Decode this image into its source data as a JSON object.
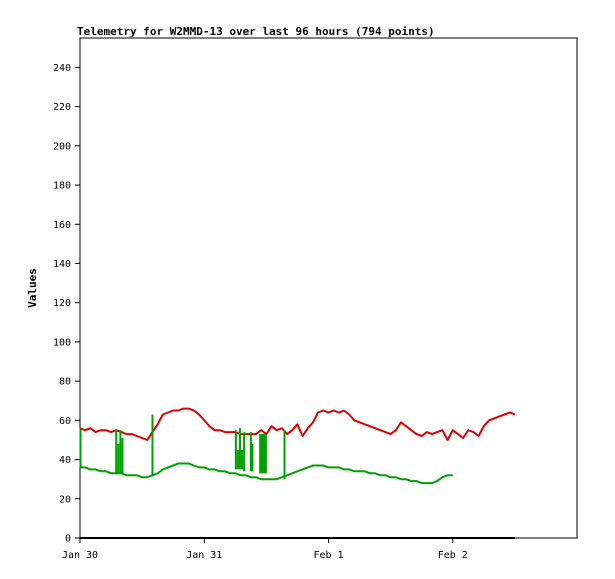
{
  "chart_data": {
    "type": "line",
    "title": "Telemetry for W2MMD-13 over last 96 hours (794 points)",
    "ylabel": "Values",
    "xlabel": "",
    "ylim": [
      0,
      255
    ],
    "xlim": [
      0,
      96
    ],
    "y_ticks": [
      0,
      20,
      40,
      60,
      80,
      100,
      120,
      140,
      160,
      180,
      200,
      220,
      240
    ],
    "x_ticks": [
      {
        "label": "Jan 30",
        "hours": 0
      },
      {
        "label": "Jan 31",
        "hours": 24
      },
      {
        "label": "Feb 1",
        "hours": 48
      },
      {
        "label": "Feb 2",
        "hours": 72
      }
    ],
    "grid": false,
    "colors": {
      "series_red": "#e00000",
      "series_green": "#00a000",
      "series_black": "#000000"
    },
    "series": [
      {
        "color": "#e00000",
        "points": [
          [
            0,
            56
          ],
          [
            1,
            55
          ],
          [
            2,
            56
          ],
          [
            3,
            54
          ],
          [
            4,
            55
          ],
          [
            5,
            55
          ],
          [
            6,
            54
          ],
          [
            7,
            55
          ],
          [
            8,
            54
          ],
          [
            9,
            53
          ],
          [
            10,
            53
          ],
          [
            11,
            52
          ],
          [
            12,
            51
          ],
          [
            13,
            50
          ],
          [
            14,
            54
          ],
          [
            15,
            58
          ],
          [
            16,
            63
          ],
          [
            17,
            64
          ],
          [
            18,
            65
          ],
          [
            19,
            65
          ],
          [
            20,
            66
          ],
          [
            21,
            66
          ],
          [
            22,
            65
          ],
          [
            23,
            63
          ],
          [
            24,
            60
          ],
          [
            25,
            57
          ],
          [
            26,
            55
          ],
          [
            27,
            55
          ],
          [
            28,
            54
          ],
          [
            29,
            54
          ],
          [
            30,
            54
          ],
          [
            31,
            53
          ],
          [
            32,
            53
          ],
          [
            33,
            53
          ],
          [
            34,
            53
          ],
          [
            35,
            55
          ],
          [
            36,
            53
          ],
          [
            37,
            57
          ],
          [
            38,
            55
          ],
          [
            39,
            56
          ],
          [
            40,
            53
          ],
          [
            41,
            55
          ],
          [
            42,
            58
          ],
          [
            43,
            52
          ],
          [
            44,
            56
          ],
          [
            45,
            59
          ],
          [
            46,
            64
          ],
          [
            47,
            65
          ],
          [
            48,
            64
          ],
          [
            49,
            65
          ],
          [
            50,
            64
          ],
          [
            51,
            65
          ],
          [
            52,
            63
          ],
          [
            53,
            60
          ],
          [
            54,
            59
          ],
          [
            55,
            58
          ],
          [
            56,
            57
          ],
          [
            57,
            56
          ],
          [
            58,
            55
          ],
          [
            59,
            54
          ],
          [
            60,
            53
          ],
          [
            61,
            55
          ],
          [
            62,
            59
          ],
          [
            63,
            57
          ],
          [
            64,
            55
          ],
          [
            65,
            53
          ],
          [
            66,
            52
          ],
          [
            67,
            54
          ],
          [
            68,
            53
          ],
          [
            69,
            54
          ],
          [
            70,
            55
          ],
          [
            71,
            50
          ],
          [
            72,
            55
          ],
          [
            73,
            53
          ],
          [
            74,
            51
          ],
          [
            75,
            55
          ],
          [
            76,
            54
          ],
          [
            77,
            52
          ],
          [
            78,
            57
          ],
          [
            79,
            60
          ],
          [
            80,
            61
          ],
          [
            81,
            62
          ],
          [
            82,
            63
          ],
          [
            83,
            64
          ],
          [
            84,
            63
          ]
        ]
      },
      {
        "color": "#00a000",
        "points": [
          [
            0,
            36
          ],
          [
            1,
            36
          ],
          [
            2,
            35
          ],
          [
            3,
            35
          ],
          [
            4,
            34
          ],
          [
            5,
            34
          ],
          [
            6,
            33
          ],
          [
            7,
            33
          ],
          [
            8,
            33
          ],
          [
            9,
            32
          ],
          [
            10,
            32
          ],
          [
            11,
            32
          ],
          [
            12,
            31
          ],
          [
            13,
            31
          ],
          [
            14,
            32
          ],
          [
            15,
            33
          ],
          [
            16,
            35
          ],
          [
            17,
            36
          ],
          [
            18,
            37
          ],
          [
            19,
            38
          ],
          [
            20,
            38
          ],
          [
            21,
            38
          ],
          [
            22,
            37
          ],
          [
            23,
            36
          ],
          [
            24,
            36
          ],
          [
            25,
            35
          ],
          [
            26,
            35
          ],
          [
            27,
            34
          ],
          [
            28,
            34
          ],
          [
            29,
            33
          ],
          [
            30,
            33
          ],
          [
            31,
            32
          ],
          [
            32,
            32
          ],
          [
            33,
            31
          ],
          [
            34,
            31
          ],
          [
            35,
            30
          ],
          [
            36,
            30
          ],
          [
            37,
            30
          ],
          [
            38,
            30
          ],
          [
            39,
            31
          ],
          [
            40,
            32
          ],
          [
            41,
            33
          ],
          [
            42,
            34
          ],
          [
            43,
            35
          ],
          [
            44,
            36
          ],
          [
            45,
            37
          ],
          [
            46,
            37
          ],
          [
            47,
            37
          ],
          [
            48,
            36
          ],
          [
            49,
            36
          ],
          [
            50,
            36
          ],
          [
            51,
            35
          ],
          [
            52,
            35
          ],
          [
            53,
            34
          ],
          [
            54,
            34
          ],
          [
            55,
            34
          ],
          [
            56,
            33
          ],
          [
            57,
            33
          ],
          [
            58,
            32
          ],
          [
            59,
            32
          ],
          [
            60,
            31
          ],
          [
            61,
            31
          ],
          [
            62,
            30
          ],
          [
            63,
            30
          ],
          [
            64,
            29
          ],
          [
            65,
            29
          ],
          [
            66,
            28
          ],
          [
            67,
            28
          ],
          [
            68,
            28
          ],
          [
            69,
            29
          ],
          [
            70,
            31
          ],
          [
            71,
            32
          ],
          [
            72,
            32
          ]
        ],
        "spikes": [
          {
            "x": 0.1,
            "low": 36,
            "high": 56
          },
          {
            "x": 7.0,
            "low": 33,
            "high": 55
          },
          {
            "x": 7.4,
            "low": 33,
            "high": 48
          },
          {
            "x": 7.8,
            "low": 33,
            "high": 55
          },
          {
            "x": 8.2,
            "low": 33,
            "high": 51
          },
          {
            "x": 14.0,
            "low": 32,
            "high": 63
          },
          {
            "x": 30.1,
            "low": 35,
            "high": 55
          },
          {
            "x": 30.5,
            "low": 35,
            "high": 45
          },
          {
            "x": 30.9,
            "low": 35,
            "high": 56
          },
          {
            "x": 31.3,
            "low": 35,
            "high": 45
          },
          {
            "x": 31.7,
            "low": 34,
            "high": 54
          },
          {
            "x": 33.0,
            "low": 34,
            "high": 54
          },
          {
            "x": 33.3,
            "low": 34,
            "high": 48
          },
          {
            "x": 34.8,
            "low": 33,
            "high": 53
          },
          {
            "x": 35.1,
            "low": 33,
            "high": 53
          },
          {
            "x": 35.4,
            "low": 33,
            "high": 53
          },
          {
            "x": 35.7,
            "low": 33,
            "high": 53
          },
          {
            "x": 35.9,
            "low": 33,
            "high": 53
          },
          {
            "x": 39.5,
            "low": 30,
            "high": 55
          }
        ]
      },
      {
        "color": "#000000",
        "points": [
          [
            0,
            0
          ],
          [
            84,
            0
          ]
        ]
      }
    ]
  }
}
